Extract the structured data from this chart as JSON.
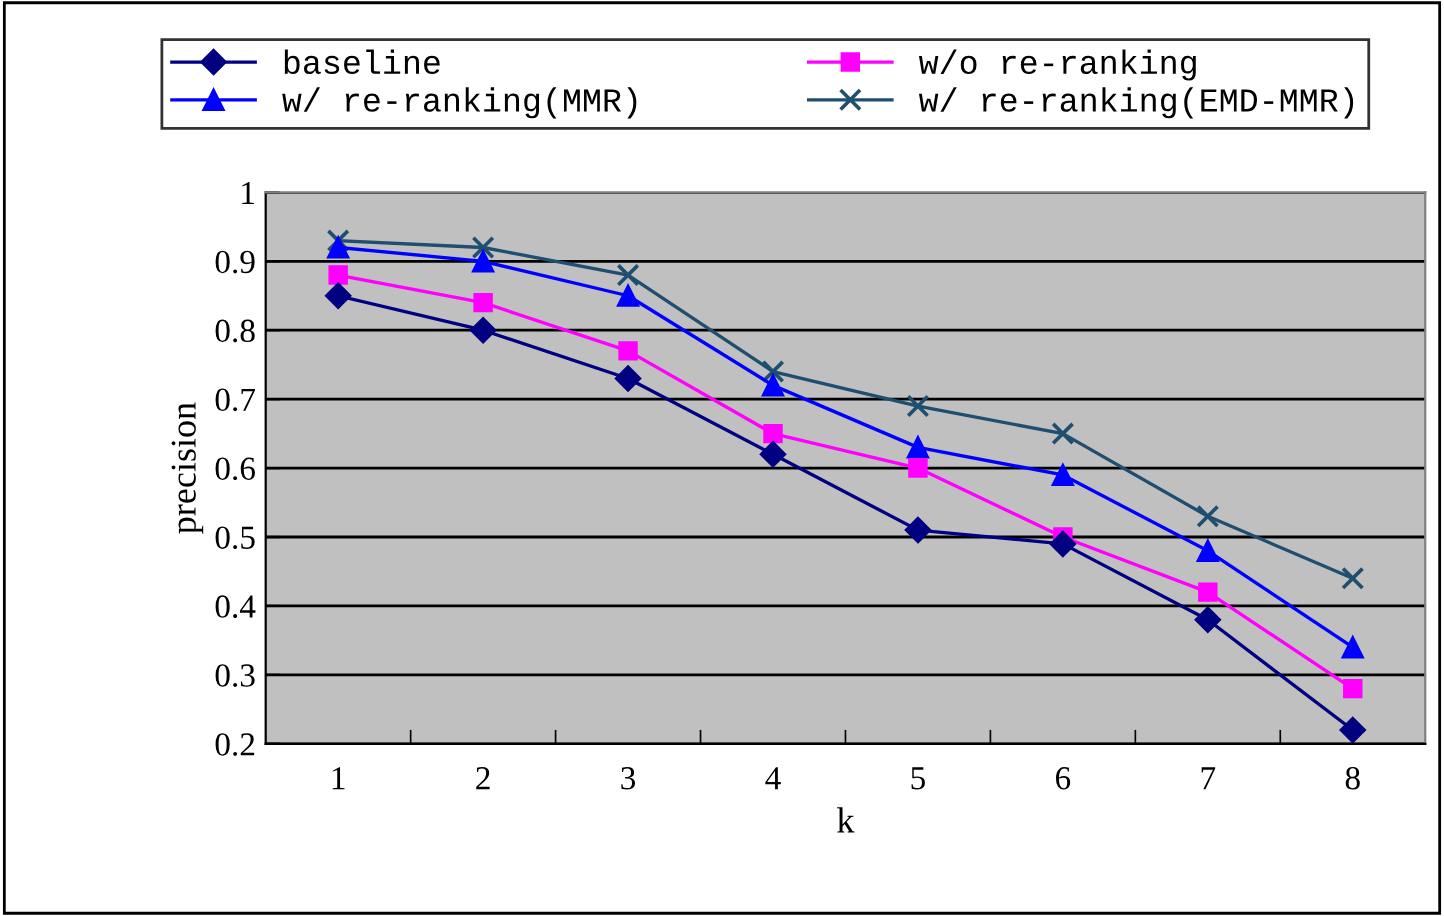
{
  "chart_data": {
    "type": "line",
    "xlabel": "k",
    "ylabel": "precision",
    "categories": [
      "1",
      "2",
      "3",
      "4",
      "5",
      "6",
      "7",
      "8"
    ],
    "series": [
      {
        "name": "baseline",
        "color": "#000080",
        "marker": "diamond",
        "values": [
          0.85,
          0.8,
          0.73,
          0.62,
          0.51,
          0.49,
          0.38,
          0.22
        ]
      },
      {
        "name": "w/o re-ranking",
        "color": "#ff00ff",
        "marker": "square",
        "values": [
          0.88,
          0.84,
          0.77,
          0.65,
          0.6,
          0.5,
          0.42,
          0.28
        ]
      },
      {
        "name": "w/ re-ranking(MMR)",
        "color": "#0000ff",
        "marker": "triangle",
        "values": [
          0.92,
          0.9,
          0.85,
          0.72,
          0.63,
          0.59,
          0.48,
          0.34
        ]
      },
      {
        "name": "w/ re-ranking(EMD-MMR)",
        "color": "#1f4e6e",
        "marker": "cross",
        "values": [
          0.93,
          0.92,
          0.88,
          0.74,
          0.69,
          0.65,
          0.53,
          0.44
        ]
      }
    ],
    "ylim": [
      0.2,
      1
    ],
    "yticks": [
      0.2,
      0.3,
      0.4,
      0.5,
      0.6,
      0.7,
      0.8,
      0.9,
      1
    ],
    "grid": "y",
    "legend": "top",
    "line_style": "solid"
  }
}
